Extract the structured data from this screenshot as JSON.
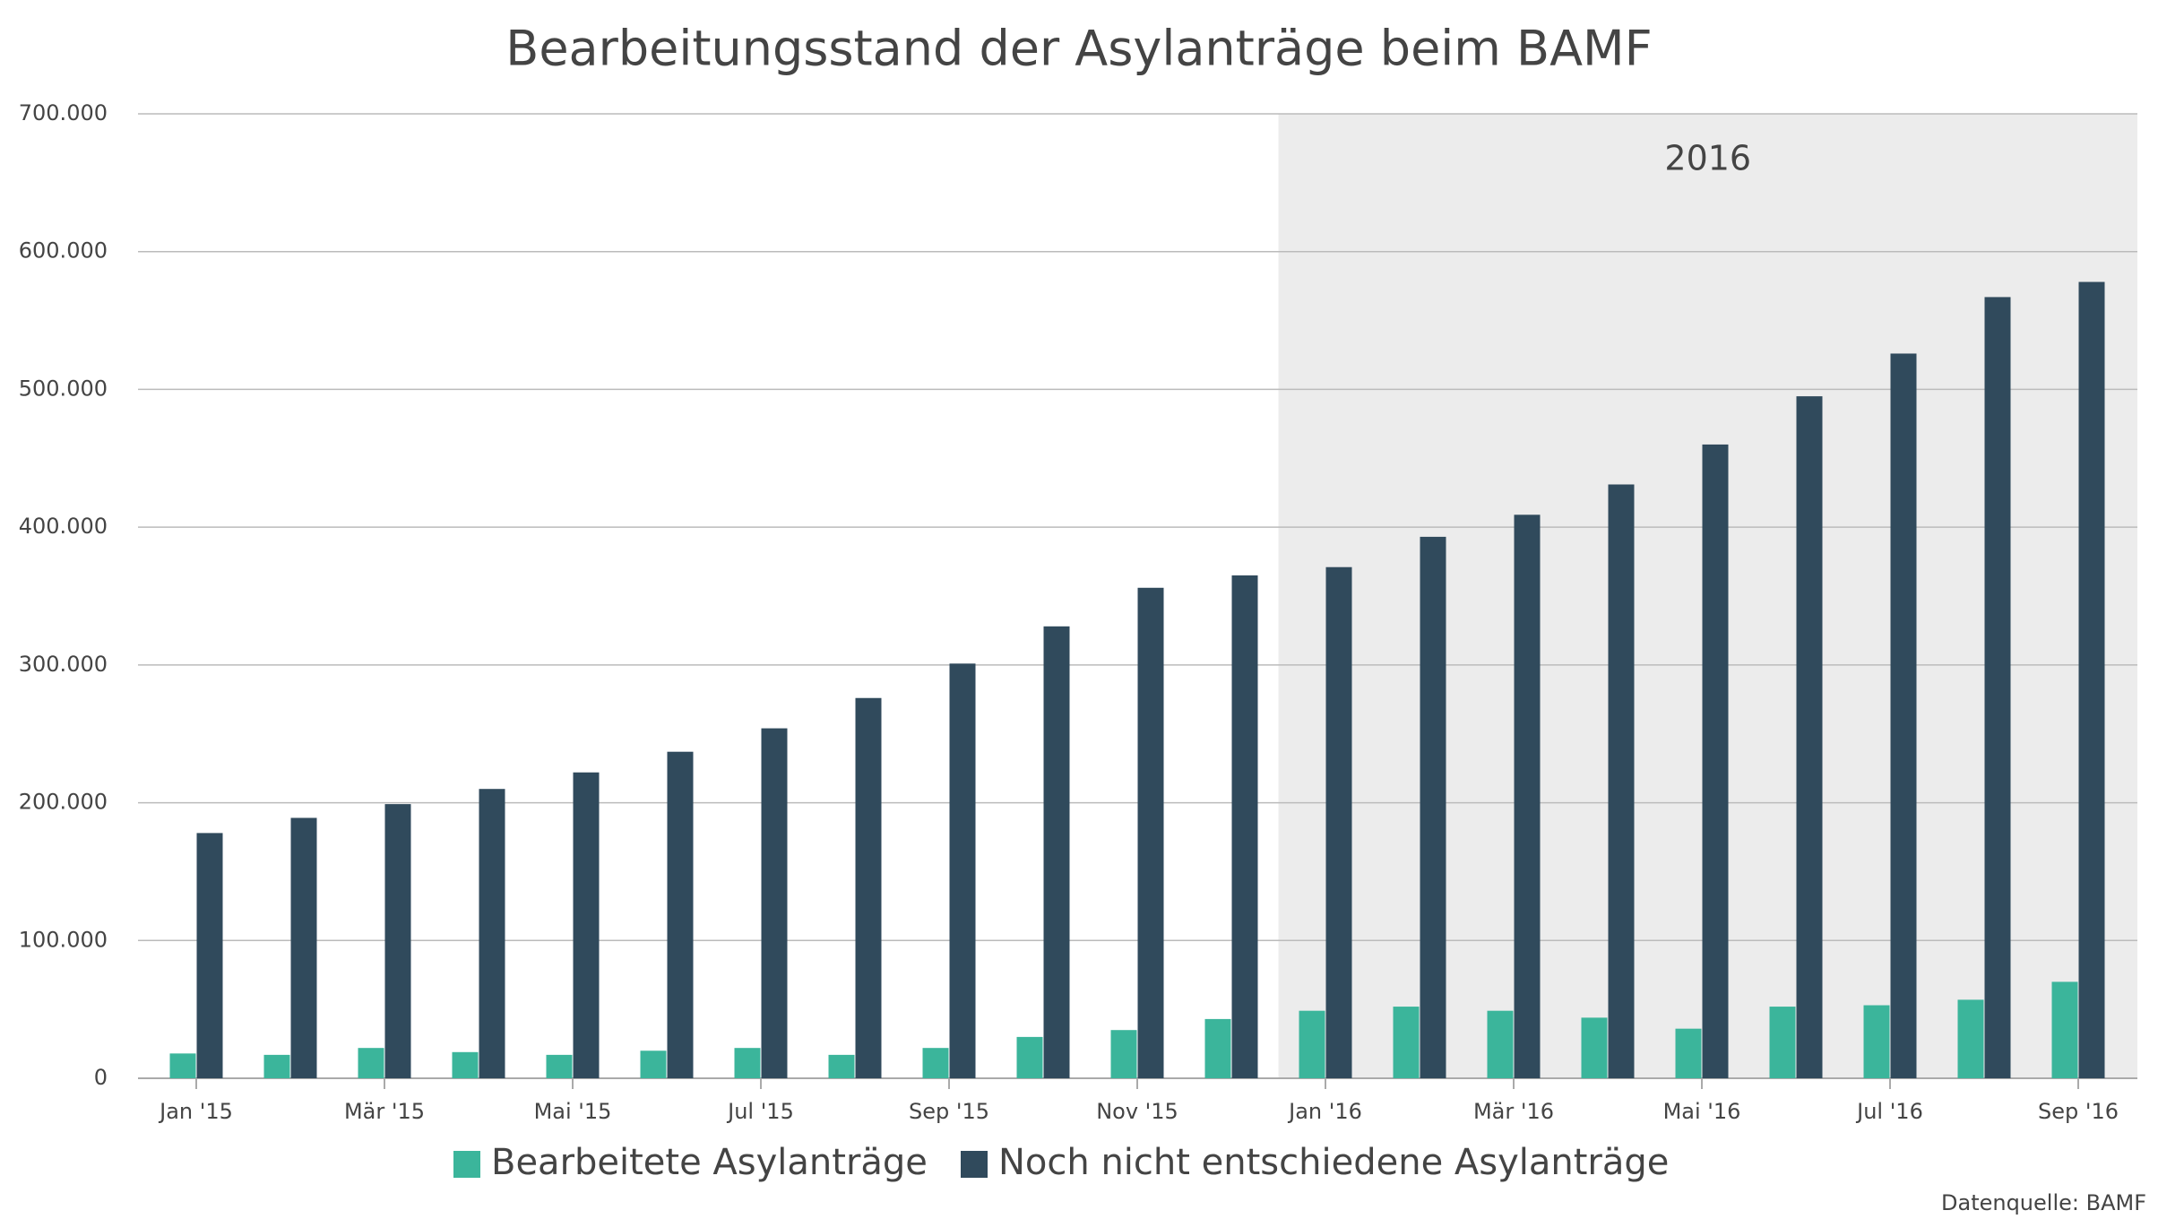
{
  "chart_data": {
    "type": "bar",
    "title": "Bearbeitungsstand der Asylanträge beim BAMF",
    "categories": [
      "Jan '15",
      null,
      "Mär '15",
      null,
      "Mai '15",
      null,
      "Jul '15",
      null,
      "Sep '15",
      null,
      "Nov '15",
      null,
      "Jan '16",
      null,
      "Mär '16",
      null,
      "Mai '16",
      null,
      "Jul '16",
      null,
      "Sep '16"
    ],
    "series": [
      {
        "name": "Bearbeitete Asylanträge",
        "color": "#3bb59b",
        "values": [
          18000,
          17000,
          22000,
          19000,
          17000,
          20000,
          22000,
          17000,
          22000,
          30000,
          35000,
          43000,
          49000,
          52000,
          49000,
          44000,
          36000,
          52000,
          53000,
          57000,
          70000
        ]
      },
      {
        "name": "Noch nicht entschiedene Asylanträge",
        "color": "#304a5c",
        "values": [
          178000,
          189000,
          199000,
          210000,
          222000,
          237000,
          254000,
          276000,
          301000,
          328000,
          356000,
          365000,
          371000,
          393000,
          409000,
          431000,
          460000,
          495000,
          526000,
          567000,
          578000
        ]
      }
    ],
    "ylim": [
      0,
      700000
    ],
    "yticks": [
      0,
      {
        "value": 100000,
        "label": "100.000"
      },
      {
        "value": 200000,
        "label": "200.000"
      },
      {
        "value": 300000,
        "label": "300.000"
      },
      {
        "value": 400000,
        "label": "400.000"
      },
      {
        "value": 500000,
        "label": "500.000"
      },
      {
        "value": 600000,
        "label": "600.000"
      },
      {
        "value": 700000,
        "label": "700.000"
      }
    ],
    "grid": true,
    "highlight": {
      "label": "2016",
      "from": "Jan '16"
    },
    "source": "Datenquelle: BAMF"
  }
}
